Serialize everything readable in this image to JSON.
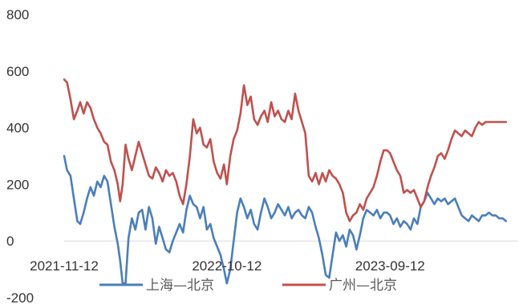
{
  "chart_data": {
    "type": "line",
    "title": "",
    "xlabel": "",
    "ylabel": "",
    "ylim": [
      -200,
      800
    ],
    "y_ticks": [
      800,
      600,
      400,
      200,
      0,
      -200
    ],
    "x_ticks": [
      "2021-11-12",
      "2022-10-12",
      "2023-09-12"
    ],
    "x_range": [
      "2021-11-12",
      "2024-06-01"
    ],
    "grid": false,
    "legend": "bottom",
    "series": [
      {
        "name": "上海—北京",
        "color": "#4a7ebb",
        "points": [
          [
            "2021-11-12",
            300
          ],
          [
            "2021-11-18",
            250
          ],
          [
            "2021-11-25",
            230
          ],
          [
            "2021-12-02",
            150
          ],
          [
            "2021-12-09",
            70
          ],
          [
            "2021-12-15",
            60
          ],
          [
            "2021-12-22",
            100
          ],
          [
            "2021-12-29",
            150
          ],
          [
            "2022-01-05",
            190
          ],
          [
            "2022-01-12",
            160
          ],
          [
            "2022-01-19",
            210
          ],
          [
            "2022-01-26",
            190
          ],
          [
            "2022-02-02",
            230
          ],
          [
            "2022-02-09",
            210
          ],
          [
            "2022-02-16",
            130
          ],
          [
            "2022-02-23",
            50
          ],
          [
            "2022-03-02",
            -10
          ],
          [
            "2022-03-07",
            -70
          ],
          [
            "2022-03-12",
            -150
          ],
          [
            "2022-03-18",
            -150
          ],
          [
            "2022-03-24",
            10
          ],
          [
            "2022-03-31",
            80
          ],
          [
            "2022-04-07",
            40
          ],
          [
            "2022-04-14",
            100
          ],
          [
            "2022-04-21",
            110
          ],
          [
            "2022-04-28",
            40
          ],
          [
            "2022-05-05",
            120
          ],
          [
            "2022-05-12",
            80
          ],
          [
            "2022-05-19",
            -10
          ],
          [
            "2022-05-26",
            50
          ],
          [
            "2022-06-02",
            10
          ],
          [
            "2022-06-09",
            -30
          ],
          [
            "2022-06-16",
            -40
          ],
          [
            "2022-06-23",
            0
          ],
          [
            "2022-06-30",
            30
          ],
          [
            "2022-07-07",
            60
          ],
          [
            "2022-07-14",
            30
          ],
          [
            "2022-07-21",
            110
          ],
          [
            "2022-07-28",
            160
          ],
          [
            "2022-08-04",
            130
          ],
          [
            "2022-08-11",
            120
          ],
          [
            "2022-08-18",
            80
          ],
          [
            "2022-08-25",
            120
          ],
          [
            "2022-09-01",
            40
          ],
          [
            "2022-09-08",
            60
          ],
          [
            "2022-09-15",
            10
          ],
          [
            "2022-09-22",
            -20
          ],
          [
            "2022-09-29",
            -50
          ],
          [
            "2022-10-06",
            -100
          ],
          [
            "2022-10-12",
            -150
          ],
          [
            "2022-10-19",
            -100
          ],
          [
            "2022-10-26",
            0
          ],
          [
            "2022-11-02",
            100
          ],
          [
            "2022-11-09",
            150
          ],
          [
            "2022-11-16",
            120
          ],
          [
            "2022-11-23",
            80
          ],
          [
            "2022-11-30",
            110
          ],
          [
            "2022-12-07",
            60
          ],
          [
            "2022-12-14",
            40
          ],
          [
            "2022-12-21",
            100
          ],
          [
            "2022-12-28",
            150
          ],
          [
            "2023-01-04",
            120
          ],
          [
            "2023-01-11",
            80
          ],
          [
            "2023-01-18",
            100
          ],
          [
            "2023-01-25",
            130
          ],
          [
            "2023-02-01",
            110
          ],
          [
            "2023-02-08",
            90
          ],
          [
            "2023-02-15",
            120
          ],
          [
            "2023-02-22",
            80
          ],
          [
            "2023-03-01",
            100
          ],
          [
            "2023-03-08",
            110
          ],
          [
            "2023-03-15",
            90
          ],
          [
            "2023-03-22",
            80
          ],
          [
            "2023-03-29",
            120
          ],
          [
            "2023-04-05",
            100
          ],
          [
            "2023-04-12",
            50
          ],
          [
            "2023-04-19",
            10
          ],
          [
            "2023-04-26",
            -50
          ],
          [
            "2023-05-03",
            -120
          ],
          [
            "2023-05-10",
            -130
          ],
          [
            "2023-05-17",
            -50
          ],
          [
            "2023-05-24",
            30
          ],
          [
            "2023-05-31",
            0
          ],
          [
            "2023-06-07",
            20
          ],
          [
            "2023-06-14",
            -20
          ],
          [
            "2023-06-21",
            40
          ],
          [
            "2023-06-28",
            20
          ],
          [
            "2023-07-05",
            -30
          ],
          [
            "2023-07-12",
            20
          ],
          [
            "2023-07-19",
            80
          ],
          [
            "2023-07-26",
            110
          ],
          [
            "2023-08-02",
            100
          ],
          [
            "2023-08-09",
            90
          ],
          [
            "2023-08-16",
            110
          ],
          [
            "2023-08-23",
            80
          ],
          [
            "2023-08-30",
            100
          ],
          [
            "2023-09-06",
            100
          ],
          [
            "2023-09-12",
            90
          ],
          [
            "2023-09-19",
            60
          ],
          [
            "2023-09-26",
            80
          ],
          [
            "2023-10-03",
            50
          ],
          [
            "2023-10-10",
            70
          ],
          [
            "2023-10-17",
            60
          ],
          [
            "2023-10-24",
            40
          ],
          [
            "2023-10-31",
            80
          ],
          [
            "2023-11-07",
            60
          ],
          [
            "2023-11-14",
            120
          ],
          [
            "2023-11-21",
            140
          ],
          [
            "2023-11-28",
            170
          ],
          [
            "2023-12-05",
            150
          ],
          [
            "2023-12-12",
            130
          ],
          [
            "2023-12-19",
            150
          ],
          [
            "2023-12-26",
            140
          ],
          [
            "2024-01-02",
            150
          ],
          [
            "2024-01-09",
            130
          ],
          [
            "2024-01-16",
            140
          ],
          [
            "2024-01-23",
            150
          ],
          [
            "2024-01-30",
            120
          ],
          [
            "2024-02-06",
            90
          ],
          [
            "2024-02-13",
            80
          ],
          [
            "2024-02-20",
            70
          ],
          [
            "2024-02-27",
            90
          ],
          [
            "2024-03-05",
            80
          ],
          [
            "2024-03-12",
            70
          ],
          [
            "2024-03-19",
            90
          ],
          [
            "2024-03-26",
            90
          ],
          [
            "2024-04-02",
            100
          ],
          [
            "2024-04-09",
            90
          ],
          [
            "2024-04-16",
            90
          ],
          [
            "2024-04-23",
            80
          ],
          [
            "2024-04-30",
            80
          ],
          [
            "2024-05-07",
            70
          ]
        ]
      },
      {
        "name": "广州—北京",
        "color": "#c0504d",
        "points": [
          [
            "2021-11-12",
            570
          ],
          [
            "2021-11-18",
            560
          ],
          [
            "2021-11-25",
            500
          ],
          [
            "2021-12-02",
            430
          ],
          [
            "2021-12-09",
            460
          ],
          [
            "2021-12-15",
            490
          ],
          [
            "2021-12-22",
            450
          ],
          [
            "2021-12-29",
            490
          ],
          [
            "2022-01-05",
            470
          ],
          [
            "2022-01-12",
            430
          ],
          [
            "2022-01-19",
            400
          ],
          [
            "2022-01-26",
            380
          ],
          [
            "2022-02-02",
            350
          ],
          [
            "2022-02-09",
            340
          ],
          [
            "2022-02-16",
            280
          ],
          [
            "2022-02-23",
            250
          ],
          [
            "2022-03-02",
            200
          ],
          [
            "2022-03-07",
            140
          ],
          [
            "2022-03-12",
            200
          ],
          [
            "2022-03-18",
            340
          ],
          [
            "2022-03-24",
            290
          ],
          [
            "2022-03-31",
            250
          ],
          [
            "2022-04-07",
            300
          ],
          [
            "2022-04-14",
            350
          ],
          [
            "2022-04-21",
            310
          ],
          [
            "2022-04-28",
            270
          ],
          [
            "2022-05-05",
            230
          ],
          [
            "2022-05-12",
            220
          ],
          [
            "2022-05-19",
            260
          ],
          [
            "2022-05-26",
            240
          ],
          [
            "2022-06-02",
            210
          ],
          [
            "2022-06-09",
            250
          ],
          [
            "2022-06-16",
            230
          ],
          [
            "2022-06-23",
            240
          ],
          [
            "2022-06-30",
            210
          ],
          [
            "2022-07-07",
            160
          ],
          [
            "2022-07-14",
            130
          ],
          [
            "2022-07-21",
            200
          ],
          [
            "2022-07-28",
            300
          ],
          [
            "2022-08-04",
            430
          ],
          [
            "2022-08-11",
            380
          ],
          [
            "2022-08-18",
            400
          ],
          [
            "2022-08-25",
            340
          ],
          [
            "2022-09-01",
            330
          ],
          [
            "2022-09-08",
            360
          ],
          [
            "2022-09-15",
            280
          ],
          [
            "2022-09-22",
            240
          ],
          [
            "2022-09-29",
            220
          ],
          [
            "2022-10-06",
            270
          ],
          [
            "2022-10-12",
            200
          ],
          [
            "2022-10-19",
            300
          ],
          [
            "2022-10-26",
            360
          ],
          [
            "2022-11-02",
            390
          ],
          [
            "2022-11-09",
            450
          ],
          [
            "2022-11-16",
            550
          ],
          [
            "2022-11-23",
            480
          ],
          [
            "2022-11-30",
            510
          ],
          [
            "2022-12-07",
            430
          ],
          [
            "2022-12-14",
            410
          ],
          [
            "2022-12-21",
            440
          ],
          [
            "2022-12-28",
            460
          ],
          [
            "2023-01-04",
            420
          ],
          [
            "2023-01-11",
            490
          ],
          [
            "2023-01-18",
            440
          ],
          [
            "2023-01-25",
            460
          ],
          [
            "2023-02-01",
            430
          ],
          [
            "2023-02-08",
            420
          ],
          [
            "2023-02-15",
            460
          ],
          [
            "2023-02-22",
            430
          ],
          [
            "2023-03-01",
            520
          ],
          [
            "2023-03-08",
            460
          ],
          [
            "2023-03-15",
            420
          ],
          [
            "2023-03-22",
            380
          ],
          [
            "2023-03-29",
            230
          ],
          [
            "2023-04-05",
            210
          ],
          [
            "2023-04-12",
            240
          ],
          [
            "2023-04-19",
            200
          ],
          [
            "2023-04-26",
            240
          ],
          [
            "2023-05-03",
            210
          ],
          [
            "2023-05-10",
            250
          ],
          [
            "2023-05-17",
            230
          ],
          [
            "2023-05-24",
            220
          ],
          [
            "2023-05-31",
            200
          ],
          [
            "2023-06-07",
            170
          ],
          [
            "2023-06-14",
            100
          ],
          [
            "2023-06-21",
            70
          ],
          [
            "2023-06-28",
            90
          ],
          [
            "2023-07-05",
            100
          ],
          [
            "2023-07-12",
            130
          ],
          [
            "2023-07-19",
            110
          ],
          [
            "2023-07-26",
            150
          ],
          [
            "2023-08-02",
            170
          ],
          [
            "2023-08-09",
            190
          ],
          [
            "2023-08-16",
            230
          ],
          [
            "2023-08-23",
            280
          ],
          [
            "2023-08-30",
            320
          ],
          [
            "2023-09-06",
            320
          ],
          [
            "2023-09-12",
            310
          ],
          [
            "2023-09-19",
            280
          ],
          [
            "2023-09-26",
            250
          ],
          [
            "2023-10-03",
            230
          ],
          [
            "2023-10-10",
            170
          ],
          [
            "2023-10-17",
            180
          ],
          [
            "2023-10-24",
            170
          ],
          [
            "2023-10-31",
            180
          ],
          [
            "2023-11-07",
            150
          ],
          [
            "2023-11-14",
            120
          ],
          [
            "2023-11-21",
            140
          ],
          [
            "2023-11-28",
            190
          ],
          [
            "2023-12-05",
            230
          ],
          [
            "2023-12-12",
            260
          ],
          [
            "2023-12-19",
            300
          ],
          [
            "2023-12-26",
            310
          ],
          [
            "2024-01-02",
            290
          ],
          [
            "2024-01-09",
            320
          ],
          [
            "2024-01-16",
            360
          ],
          [
            "2024-01-23",
            390
          ],
          [
            "2024-01-30",
            380
          ],
          [
            "2024-02-06",
            370
          ],
          [
            "2024-02-13",
            390
          ],
          [
            "2024-02-20",
            380
          ],
          [
            "2024-02-27",
            370
          ],
          [
            "2024-03-05",
            400
          ],
          [
            "2024-03-12",
            420
          ],
          [
            "2024-03-19",
            410
          ],
          [
            "2024-03-26",
            420
          ],
          [
            "2024-04-02",
            420
          ],
          [
            "2024-04-09",
            420
          ],
          [
            "2024-04-16",
            420
          ],
          [
            "2024-04-23",
            420
          ],
          [
            "2024-04-30",
            420
          ],
          [
            "2024-05-07",
            420
          ]
        ]
      }
    ]
  }
}
